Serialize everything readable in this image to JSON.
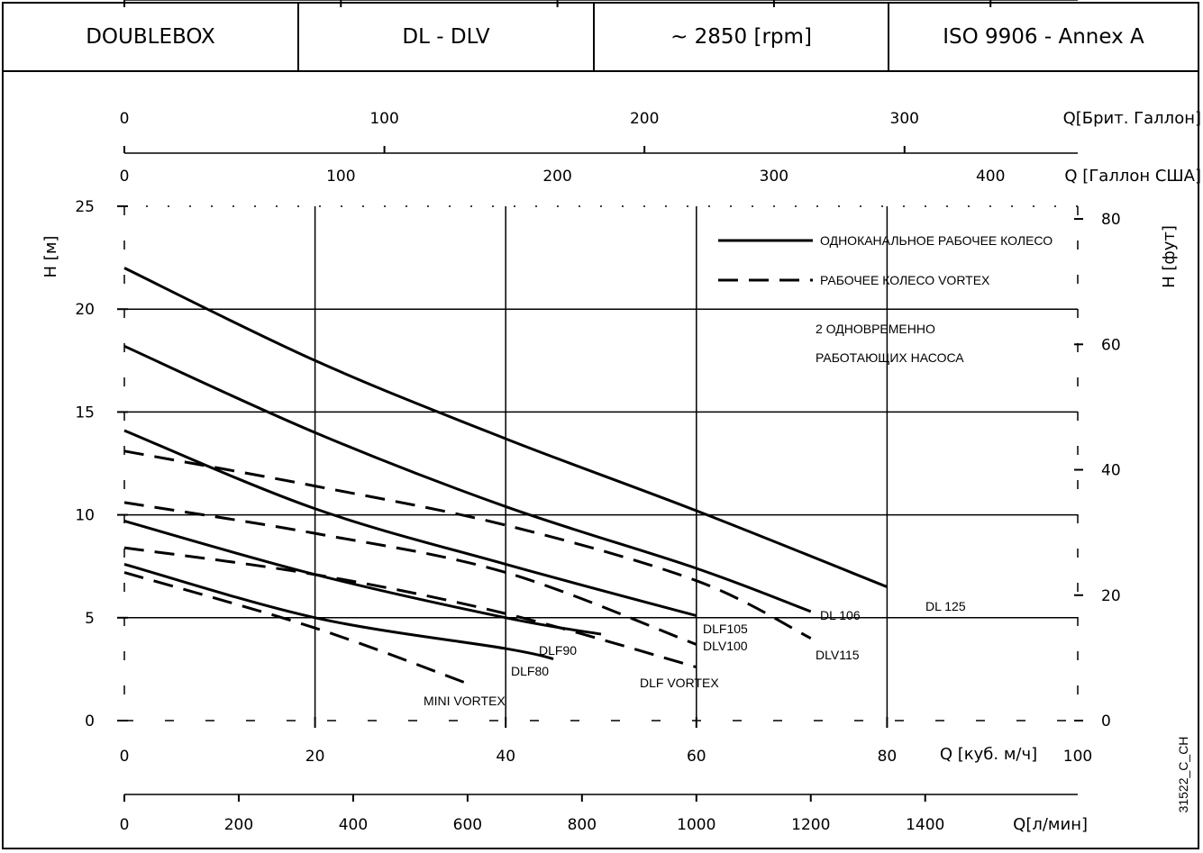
{
  "header": {
    "cells": [
      "DOUBLEBOX",
      "DL - DLV",
      "~ 2850 [rpm]",
      "ISO 9906 - Annex A"
    ]
  },
  "chart_data": {
    "type": "line",
    "xlabel": "Q [куб. м/ч]",
    "ylabel": "H [м]",
    "y2label": "H [фут]",
    "xlim": [
      0,
      100
    ],
    "ylim": [
      0,
      25
    ],
    "grid": true,
    "legend_position": "top-right",
    "x_ticks": [
      "0",
      "20",
      "40",
      "60",
      "80",
      "100"
    ],
    "y_ticks": [
      "0",
      "5",
      "10",
      "15",
      "20",
      "25"
    ],
    "y2_ticks": [
      "0",
      "20",
      "40",
      "60",
      "80"
    ],
    "secondary_axes": [
      {
        "label": "Q[Брит. Галлон]",
        "ticks": [
          "0",
          "100",
          "200",
          "300"
        ]
      },
      {
        "label": "Q [Галлон США]",
        "ticks": [
          "0",
          "100",
          "200",
          "300",
          "400"
        ]
      },
      {
        "label": "Q[л/мин]",
        "ticks": [
          "0",
          "200",
          "400",
          "600",
          "800",
          "1000",
          "1200",
          "1400"
        ]
      }
    ],
    "legend": [
      {
        "label": "ОДНОКАНАЛЬНОЕ РАБОЧЕЕ КОЛЕСО",
        "style": "solid"
      },
      {
        "label": "РАБОЧЕЕ КОЛЕСО VORTEX",
        "style": "dashed"
      }
    ],
    "note": [
      "2 ОДНОВРЕМЕННО",
      "РАБОТАЮЩИХ НАСОСА"
    ],
    "series": [
      {
        "name": "DL 125",
        "style": "solid",
        "x": [
          0,
          20,
          40,
          60,
          80
        ],
        "y": [
          22,
          17.5,
          13.7,
          10.2,
          6.5
        ]
      },
      {
        "name": "DL 106",
        "style": "solid",
        "x": [
          0,
          20,
          40,
          60,
          72
        ],
        "y": [
          18.2,
          14,
          10.4,
          7.4,
          5.3
        ]
      },
      {
        "name": "DLF105",
        "style": "solid",
        "x": [
          0,
          20,
          40,
          60
        ],
        "y": [
          14.1,
          10.3,
          7.6,
          5.1
        ]
      },
      {
        "name": "DLF90",
        "style": "solid",
        "x": [
          0,
          20,
          40,
          50
        ],
        "y": [
          9.7,
          7.1,
          5,
          4.2
        ]
      },
      {
        "name": "DLF80",
        "style": "solid",
        "x": [
          0,
          20,
          40,
          45
        ],
        "y": [
          7.6,
          5,
          3.5,
          3
        ]
      },
      {
        "name": "DLV115",
        "style": "dashed",
        "x": [
          0,
          20,
          40,
          60,
          72
        ],
        "y": [
          13.1,
          11.4,
          9.5,
          6.8,
          4
        ]
      },
      {
        "name": "DLV100",
        "style": "dashed",
        "x": [
          0,
          20,
          40,
          60
        ],
        "y": [
          10.6,
          9.1,
          7.2,
          3.7
        ]
      },
      {
        "name": "DLF VORTEX",
        "style": "dashed",
        "x": [
          0,
          20,
          40,
          60
        ],
        "y": [
          8.4,
          7.1,
          5.2,
          2.6
        ]
      },
      {
        "name": "MINI VORTEX",
        "style": "dashed",
        "x": [
          0,
          20,
          36
        ],
        "y": [
          7.2,
          4.5,
          1.8
        ]
      }
    ],
    "image_id": "31522_C_CH"
  }
}
